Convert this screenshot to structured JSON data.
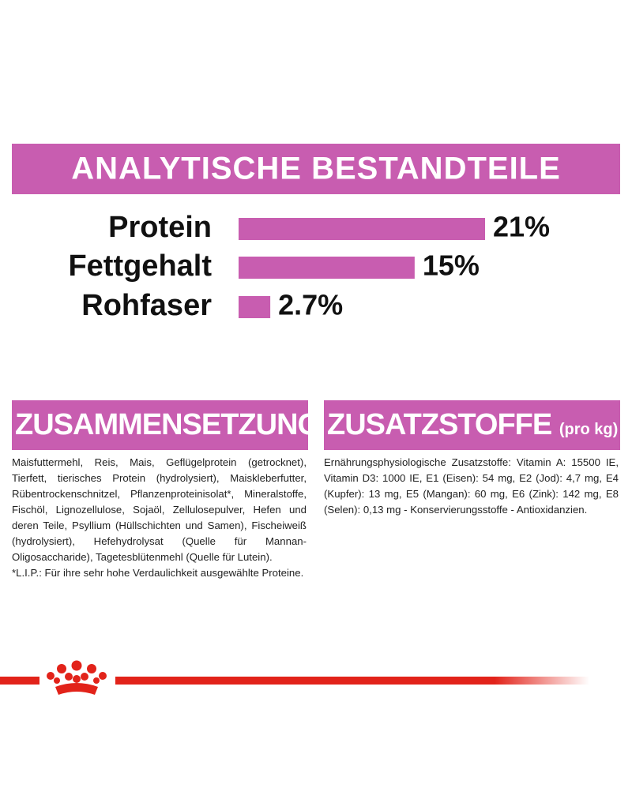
{
  "chart_data": {
    "type": "bar",
    "title": "ANALYTISCHE BESTANDTEILE",
    "categories": [
      "Protein",
      "Fettgehalt",
      "Rohfaser"
    ],
    "values": [
      21,
      15,
      2.7
    ],
    "value_labels": [
      "21%",
      "15%",
      "2.7%"
    ],
    "color": "#c85db0"
  },
  "composition": {
    "title": "ZUSAMMENSETZUNG",
    "paragraphs": [
      "Maisfuttermehl, Reis, Mais, Geflügelprotein (getrocknet), Tierfett, tierisches Protein (hydrolysiert), Maiskleberfutter, Rübentrockenschnitzel, Pflanzenproteinisolat*, Mineralstoffe, Fischöl, Lignozellulose, Sojaöl, Zellulosepulver, Hefen und deren Teile, Psyllium (Hüllschichten und Samen), Fischeiweiß (hydrolysiert), Hefehydrolysat (Quelle für Mannan-Oligosaccharide), Tagetesblütenmehl (Quelle für Lutein).",
      "*L.I.P.: Für ihre sehr hohe Verdaulichkeit ausgewählte Proteine."
    ]
  },
  "additives": {
    "title": "ZUSATZSTOFFE",
    "unit": "(pro kg)",
    "text": "Ernährungsphysiologische Zusatzstoffe: Vitamin A: 15500 IE, Vitamin D3: 1000 IE, E1 (Eisen): 54 mg, E2 (Jod): 4,7 mg, E4 (Kupfer): 13 mg, E5 (Mangan): 60 mg, E6 (Zink): 142 mg, E8 (Selen): 0,13 mg - Konservierungsstoffe - Antioxidanzien."
  }
}
